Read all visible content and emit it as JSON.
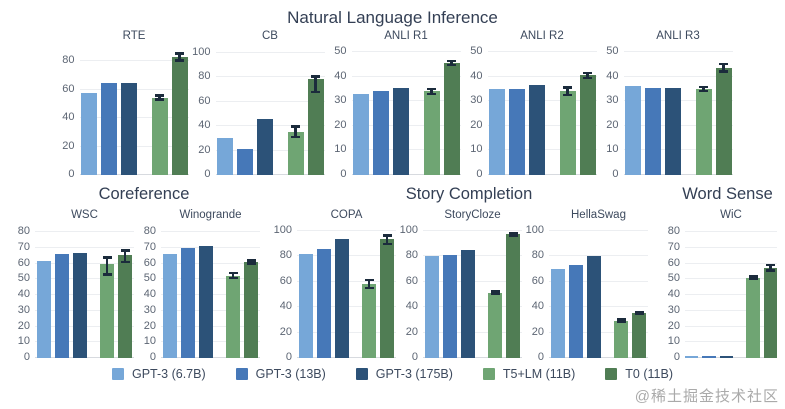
{
  "page": {
    "watermark": "@稀土掘金技术社区"
  },
  "chart_data": {
    "type": "bar",
    "legend_position": "bottom",
    "grid": true,
    "error_bar_color": "#1b2b3c",
    "series": [
      {
        "name": "GPT-3 (6.7B)",
        "color": "#76a7d8"
      },
      {
        "name": "GPT-3 (13B)",
        "color": "#4678b8"
      },
      {
        "name": "GPT-3 (175B)",
        "color": "#2c5278"
      },
      {
        "name": "T5+LM (11B)",
        "color": "#6fa573"
      },
      {
        "name": "T0 (11B)",
        "color": "#507d54"
      }
    ],
    "groups": [
      {
        "title": "Natural Language Inference",
        "charts": [
          {
            "title": "RTE",
            "yticks": [
              0,
              20,
              40,
              60,
              80
            ],
            "ymax_render": 90,
            "values": [
              57.5,
              64.5,
              65,
              54.5,
              83
            ],
            "errors": [
              [
                0,
                0
              ],
              [
                0,
                0
              ],
              [
                0,
                0
              ],
              [
                1.5,
                1.5
              ],
              [
                2.5,
                2.5
              ]
            ]
          },
          {
            "title": "CB",
            "yticks": [
              0,
              20,
              40,
              60,
              80,
              100
            ],
            "ymax_render": 105,
            "values": [
              30,
              21,
              46,
              35,
              79
            ],
            "errors": [
              [
                0,
                0
              ],
              [
                0,
                0
              ],
              [
                0,
                0
              ],
              [
                4,
                5
              ],
              [
                11,
                2
              ]
            ]
          },
          {
            "title": "ANLI R1",
            "yticks": [
              0,
              10,
              20,
              30,
              40,
              50
            ],
            "ymax_render": 52,
            "values": [
              33,
              34,
              35.5,
              34,
              45.5
            ],
            "errors": [
              [
                0,
                0
              ],
              [
                0,
                0
              ],
              [
                0,
                0
              ],
              [
                1,
                1
              ],
              [
                0.8,
                0.8
              ]
            ]
          },
          {
            "title": "ANLI R2",
            "yticks": [
              0,
              10,
              20,
              30,
              40,
              50
            ],
            "ymax_render": 52,
            "values": [
              35,
              35,
              36.5,
              34,
              40.5
            ],
            "errors": [
              [
                0,
                0
              ],
              [
                0,
                0
              ],
              [
                0,
                0
              ],
              [
                1.5,
                1.5
              ],
              [
                1,
                1
              ]
            ]
          },
          {
            "title": "ANLI R3",
            "yticks": [
              0,
              10,
              20,
              30,
              40,
              50
            ],
            "ymax_render": 52,
            "values": [
              36,
              35.5,
              35.5,
              35,
              43.5
            ],
            "errors": [
              [
                0,
                0
              ],
              [
                0,
                0
              ],
              [
                0,
                0
              ],
              [
                0.8,
                0.8
              ],
              [
                1.5,
                1.5
              ]
            ]
          }
        ]
      },
      {
        "title": "Coreference",
        "charts": [
          {
            "title": "WSC",
            "yticks": [
              0,
              10,
              20,
              30,
              40,
              50,
              60,
              70,
              80
            ],
            "ymax_render": 84,
            "values": [
              62,
              66.5,
              67,
              60,
              65.5
            ],
            "errors": [
              [
                0,
                0
              ],
              [
                0,
                0
              ],
              [
                0,
                0
              ],
              [
                7,
                4
              ],
              [
                4.5,
                3
              ]
            ]
          },
          {
            "title": "Winogrande",
            "yticks": [
              0,
              10,
              20,
              30,
              40,
              50,
              60,
              70,
              80
            ],
            "ymax_render": 84,
            "values": [
              66,
              70,
              71.5,
              52.5,
              61
            ],
            "errors": [
              [
                0,
                0
              ],
              [
                0,
                0
              ],
              [
                0,
                0
              ],
              [
                1.5,
                1.5
              ],
              [
                1,
                1
              ]
            ]
          }
        ]
      },
      {
        "title": "Story Completion",
        "charts": [
          {
            "title": "COPA",
            "yticks": [
              0,
              20,
              40,
              60,
              80,
              100
            ],
            "ymax_render": 104,
            "values": [
              82,
              86,
              93.5,
              58,
              93.5
            ],
            "errors": [
              [
                0,
                0
              ],
              [
                0,
                0
              ],
              [
                0,
                0
              ],
              [
                3,
                3.5
              ],
              [
                3.5,
                3
              ]
            ]
          },
          {
            "title": "StoryCloze",
            "yticks": [
              0,
              20,
              40,
              60,
              80,
              100
            ],
            "ymax_render": 104,
            "values": [
              80,
              81.5,
              85,
              51.5,
              97.5
            ],
            "errors": [
              [
                0,
                0
              ],
              [
                0,
                0
              ],
              [
                0,
                0
              ],
              [
                0.8,
                0.8
              ],
              [
                0.8,
                0.8
              ]
            ]
          },
          {
            "title": "HellaSwag",
            "yticks": [
              0,
              20,
              40,
              60,
              80,
              100
            ],
            "ymax_render": 104,
            "values": [
              70,
              73.5,
              80,
              29.5,
              35.5
            ],
            "errors": [
              [
                0,
                0
              ],
              [
                0,
                0
              ],
              [
                0,
                0
              ],
              [
                0.8,
                0.8
              ],
              [
                0.8,
                0.8
              ]
            ]
          }
        ]
      },
      {
        "title": "Word Sense",
        "charts": [
          {
            "title": "WiC",
            "yticks": [
              0,
              10,
              20,
              30,
              40,
              50,
              60,
              70,
              80
            ],
            "ymax_render": 84,
            "values": [
              1.5,
              1.5,
              1.5,
              51,
              57.5
            ],
            "errors": [
              [
                0,
                0
              ],
              [
                0,
                0
              ],
              [
                0,
                0
              ],
              [
                0.8,
                0.8
              ],
              [
                1.8,
                1.8
              ]
            ]
          }
        ]
      }
    ]
  }
}
